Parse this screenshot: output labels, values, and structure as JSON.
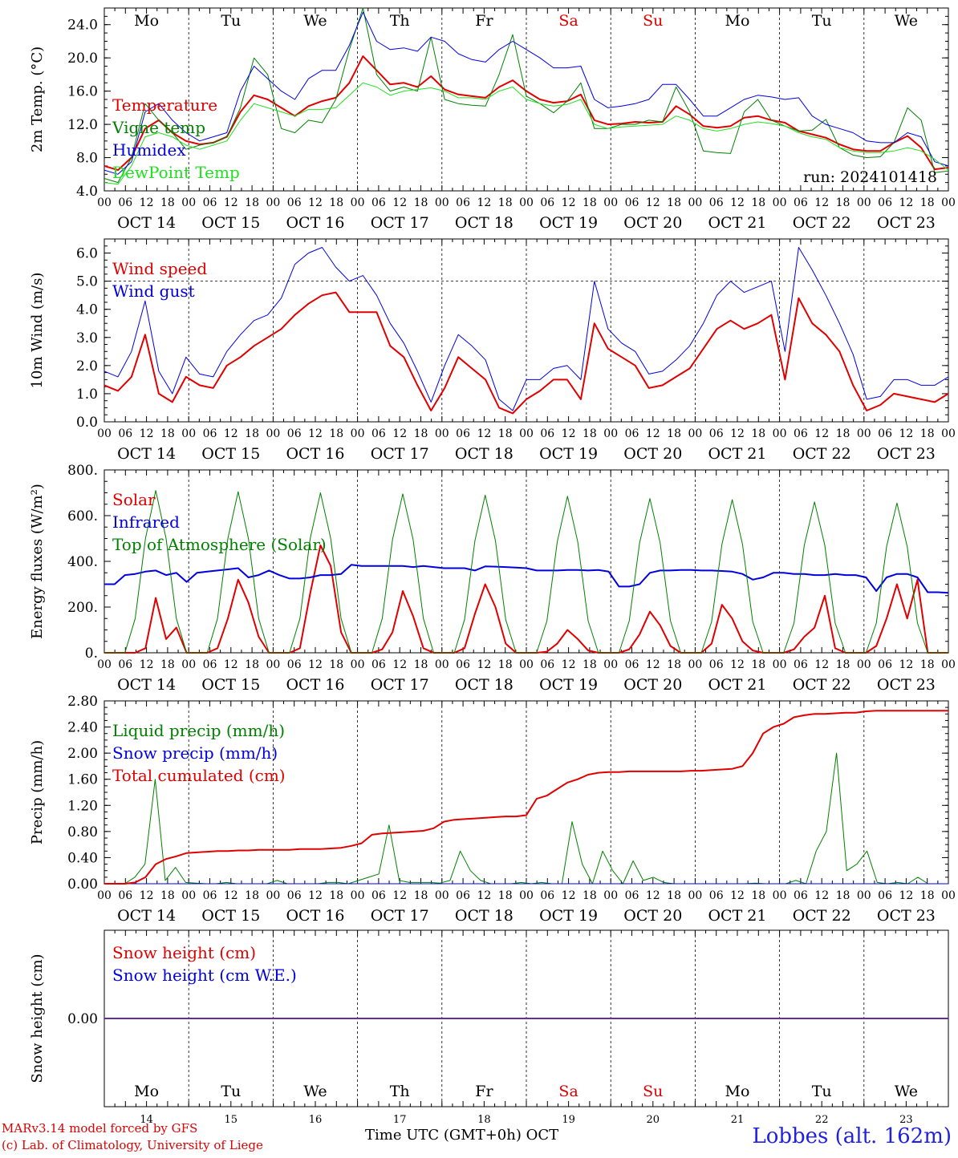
{
  "days": {
    "weekday_labels": [
      "Mo",
      "Tu",
      "We",
      "Th",
      "Fr",
      "Sa",
      "Su",
      "Mo",
      "Tu",
      "We"
    ],
    "date_labels": [
      "OCT 14",
      "OCT 15",
      "OCT 16",
      "OCT 17",
      "OCT 18",
      "OCT 19",
      "OCT 20",
      "OCT 21",
      "OCT 22",
      "OCT 23"
    ],
    "bottom_day_numbers": [
      "14",
      "15",
      "16",
      "17",
      "18",
      "19",
      "20",
      "21",
      "22",
      "23"
    ],
    "hour_labels": [
      "00",
      "06",
      "12",
      "18"
    ],
    "final_hour_label": "00",
    "weekend_color": "#e00000"
  },
  "chart_data": [
    {
      "type": "line",
      "ylabel": "2m Temp. (°C)",
      "ylim": [
        4.0,
        26.0
      ],
      "yticks": [
        "4.0",
        "8.0",
        "12.0",
        "16.0",
        "20.0",
        "24.0"
      ],
      "annotation": "run: 2024101418",
      "x_unit": "days since Oct 14 00 UTC (step 0.25)",
      "series": [
        {
          "name": "Temperature",
          "color": "#e00000",
          "width": 2,
          "values": [
            7.0,
            6.5,
            8.0,
            11.5,
            12.5,
            11.0,
            10.0,
            9.6,
            9.8,
            10.5,
            13.5,
            15.5,
            15.0,
            14.0,
            13.0,
            14.2,
            14.8,
            15.2,
            17.0,
            20.2,
            18.5,
            16.8,
            17.0,
            16.5,
            17.8,
            16.2,
            15.6,
            15.4,
            15.2,
            16.5,
            17.3,
            16.0,
            15.0,
            14.6,
            14.8,
            15.6,
            12.5,
            12.0,
            12.1,
            12.3,
            12.2,
            12.3,
            14.2,
            13.2,
            11.8,
            11.6,
            11.8,
            12.8,
            13.0,
            12.5,
            12.2,
            11.2,
            10.8,
            10.4,
            9.6,
            9.0,
            8.8,
            8.8,
            9.8,
            10.6,
            9.2,
            6.6,
            6.8
          ]
        },
        {
          "name": "Vigne temp",
          "color": "#008000",
          "width": 1,
          "values": [
            5.5,
            5.0,
            8.0,
            14.5,
            12.5,
            11.0,
            9.0,
            9.5,
            9.8,
            10.5,
            14.0,
            20.0,
            18.0,
            11.5,
            11.0,
            12.5,
            12.2,
            15.0,
            21.0,
            26.0,
            18.0,
            16.0,
            16.5,
            16.0,
            22.5,
            15.0,
            14.5,
            14.3,
            14.2,
            18.0,
            22.8,
            15.4,
            14.5,
            13.4,
            14.8,
            17.0,
            11.5,
            11.5,
            12.0,
            12.0,
            12.5,
            12.3,
            16.5,
            13.5,
            8.8,
            8.6,
            8.5,
            13.5,
            15.0,
            12.5,
            11.8,
            11.2,
            11.3,
            12.6,
            9.2,
            8.3,
            8.0,
            8.1,
            9.8,
            14.0,
            12.5,
            6.2,
            6.4
          ]
        },
        {
          "name": "Humidex",
          "color": "#0000e0",
          "width": 1,
          "values": [
            6.5,
            6.0,
            7.5,
            13.5,
            14.5,
            12.5,
            11.0,
            10.0,
            10.5,
            11.0,
            16.0,
            19.0,
            17.5,
            16.0,
            15.0,
            17.5,
            18.5,
            18.5,
            21.5,
            25.5,
            22.0,
            21.0,
            21.2,
            20.8,
            22.5,
            22.0,
            20.5,
            19.8,
            19.5,
            21.0,
            22.0,
            21.0,
            20.0,
            18.8,
            18.8,
            19.0,
            15.0,
            14.0,
            14.2,
            14.5,
            15.0,
            16.8,
            16.8,
            15.0,
            13.0,
            13.0,
            14.0,
            15.0,
            15.5,
            15.3,
            15.0,
            15.2,
            13.0,
            12.0,
            11.5,
            11.0,
            10.0,
            9.8,
            9.8,
            11.0,
            10.5,
            7.5,
            7.0
          ]
        },
        {
          "name": "DewPoint Temp",
          "color": "#20e020",
          "width": 1,
          "values": [
            5.0,
            4.8,
            7.0,
            10.5,
            11.0,
            10.5,
            9.5,
            9.0,
            9.5,
            10.0,
            12.5,
            14.5,
            14.0,
            13.5,
            13.0,
            13.8,
            13.8,
            14.0,
            15.5,
            17.0,
            16.5,
            15.5,
            16.0,
            16.2,
            16.4,
            16.0,
            15.2,
            15.2,
            15.0,
            16.0,
            16.5,
            15.0,
            14.5,
            14.2,
            14.4,
            15.0,
            12.0,
            11.5,
            11.7,
            11.8,
            11.9,
            12.0,
            13.0,
            12.5,
            11.5,
            11.2,
            11.5,
            12.0,
            12.3,
            12.1,
            11.8,
            11.0,
            10.5,
            10.2,
            9.2,
            8.8,
            8.6,
            8.6,
            8.8,
            9.2,
            8.8,
            7.8,
            6.5
          ]
        }
      ]
    },
    {
      "type": "line",
      "ylabel": "10m Wind (m/s)",
      "ylim": [
        0.0,
        6.5
      ],
      "yticks": [
        "0.0",
        "1.0",
        "2.0",
        "3.0",
        "4.0",
        "5.0",
        "6.0"
      ],
      "hline": 5.0,
      "x_unit": "days since Oct 14 00 UTC (step 0.25)",
      "series": [
        {
          "name": "Wind speed",
          "color": "#e00000",
          "width": 2,
          "values": [
            1.3,
            1.1,
            1.6,
            3.1,
            1.0,
            0.7,
            1.6,
            1.3,
            1.2,
            2.0,
            2.3,
            2.7,
            3.0,
            3.3,
            3.8,
            4.2,
            4.5,
            4.6,
            3.9,
            3.9,
            3.9,
            2.7,
            2.3,
            1.3,
            0.4,
            1.2,
            2.3,
            1.9,
            1.5,
            0.5,
            0.3,
            0.8,
            1.1,
            1.5,
            1.5,
            0.8,
            3.5,
            2.6,
            2.3,
            2.0,
            1.2,
            1.3,
            1.6,
            1.9,
            2.6,
            3.3,
            3.6,
            3.3,
            3.5,
            3.8,
            1.5,
            4.4,
            3.5,
            3.1,
            2.5,
            1.3,
            0.4,
            0.6,
            1.0,
            0.9,
            0.8,
            0.7,
            1.0
          ]
        },
        {
          "name": "Wind gust",
          "color": "#0000e0",
          "width": 1,
          "values": [
            1.8,
            1.6,
            2.5,
            4.3,
            1.8,
            1.0,
            2.3,
            1.7,
            1.6,
            2.5,
            3.1,
            3.6,
            3.8,
            4.4,
            5.6,
            6.0,
            6.2,
            5.5,
            5.0,
            5.2,
            4.5,
            3.5,
            2.8,
            1.8,
            0.7,
            2.0,
            3.1,
            2.7,
            2.2,
            0.8,
            0.4,
            1.5,
            1.5,
            1.9,
            2.0,
            1.5,
            5.0,
            3.3,
            2.8,
            2.5,
            1.7,
            1.8,
            2.2,
            2.7,
            3.5,
            4.5,
            5.0,
            4.6,
            4.8,
            5.0,
            2.5,
            6.2,
            5.4,
            4.5,
            3.5,
            2.4,
            0.8,
            0.9,
            1.5,
            1.5,
            1.3,
            1.3,
            1.6
          ]
        }
      ]
    },
    {
      "type": "line",
      "ylabel": "Energy fluxes (W/m²)",
      "ylim": [
        0,
        800
      ],
      "yticks": [
        "0.",
        "200.",
        "400.",
        "600.",
        "800."
      ],
      "x_unit": "days since Oct 14 00 UTC (step 0.125)",
      "series": [
        {
          "name": "Solar",
          "color": "#e00000",
          "width": 2,
          "values": [
            0,
            0,
            0,
            0,
            20,
            240,
            60,
            110,
            0,
            0,
            0,
            20,
            150,
            320,
            220,
            70,
            0,
            0,
            0,
            20,
            260,
            470,
            380,
            90,
            0,
            0,
            0,
            15,
            90,
            270,
            160,
            20,
            0,
            0,
            0,
            20,
            170,
            300,
            200,
            40,
            0,
            0,
            0,
            5,
            40,
            100,
            60,
            10,
            0,
            0,
            0,
            15,
            80,
            180,
            120,
            30,
            0,
            0,
            0,
            40,
            210,
            150,
            50,
            10,
            0,
            0,
            0,
            15,
            70,
            110,
            250,
            20,
            0,
            0,
            0,
            30,
            150,
            300,
            150,
            320,
            0,
            0,
            0
          ]
        },
        {
          "name": "Infrared",
          "color": "#0000e0",
          "width": 2,
          "values": [
            300,
            300,
            340,
            345,
            355,
            360,
            340,
            350,
            310,
            350,
            355,
            360,
            365,
            370,
            330,
            340,
            360,
            340,
            325,
            325,
            330,
            340,
            340,
            345,
            385,
            380,
            380,
            380,
            380,
            380,
            375,
            380,
            375,
            370,
            370,
            370,
            360,
            378,
            377,
            375,
            373,
            370,
            360,
            360,
            360,
            362,
            362,
            360,
            362,
            355,
            290,
            290,
            300,
            350,
            360,
            360,
            362,
            362,
            360,
            360,
            358,
            355,
            345,
            320,
            330,
            350,
            350,
            345,
            345,
            340,
            340,
            345,
            340,
            340,
            330,
            270,
            330,
            345,
            345,
            330,
            265,
            265,
            262
          ]
        },
        {
          "name": "Top of Atmosphere (Solar)",
          "color": "#008000",
          "width": 1,
          "values": [
            0,
            0,
            0,
            150,
            500,
            710,
            500,
            150,
            0,
            0,
            0,
            150,
            500,
            705,
            500,
            150,
            0,
            0,
            0,
            150,
            500,
            700,
            500,
            150,
            0,
            0,
            0,
            150,
            495,
            695,
            495,
            150,
            0,
            0,
            0,
            145,
            490,
            690,
            490,
            145,
            0,
            0,
            0,
            140,
            485,
            685,
            485,
            140,
            0,
            0,
            0,
            140,
            480,
            675,
            480,
            140,
            0,
            0,
            0,
            135,
            475,
            670,
            475,
            135,
            0,
            0,
            0,
            130,
            470,
            660,
            470,
            130,
            0,
            0,
            0,
            130,
            465,
            655,
            465,
            130,
            0,
            0,
            0
          ]
        }
      ]
    },
    {
      "type": "line",
      "ylabel": "Precip (mm/h)",
      "ylim": [
        0.0,
        2.8
      ],
      "yticks": [
        "0.00",
        "0.40",
        "0.80",
        "1.20",
        "1.60",
        "2.00",
        "2.40",
        "2.80"
      ],
      "x_unit": "days since Oct 14 00 UTC (step 0.125)",
      "series": [
        {
          "name": "Liquid precip (mm/h)",
          "color": "#008000",
          "width": 1,
          "values": [
            0,
            0,
            0,
            0.1,
            0.3,
            1.6,
            0.05,
            0.25,
            0.02,
            0.01,
            0,
            0,
            0.02,
            0,
            0,
            0,
            0,
            0.05,
            0,
            0,
            0,
            0,
            0.02,
            0.02,
            0,
            0.05,
            0.1,
            0.15,
            0.9,
            0.05,
            0.02,
            0.02,
            0.02,
            0.01,
            0.05,
            0.5,
            0.2,
            0.05,
            0,
            0,
            0,
            0.02,
            0,
            0.02,
            0,
            0,
            0.95,
            0.3,
            0,
            0.5,
            0.2,
            0,
            0.35,
            0.05,
            0.1,
            0.02,
            0,
            0,
            0,
            0,
            0,
            0,
            0,
            0,
            0.01,
            0,
            0,
            0,
            0.05,
            0,
            0.5,
            0.8,
            2.0,
            0.2,
            0.3,
            0.5,
            0.02,
            0,
            0.02,
            0,
            0.1,
            0,
            0,
            0
          ]
        },
        {
          "name": "Snow precip (mm/h)",
          "color": "#0000e0",
          "width": 1,
          "values": [
            0,
            0,
            0,
            0,
            0,
            0,
            0,
            0,
            0,
            0,
            0,
            0,
            0,
            0,
            0,
            0,
            0,
            0,
            0,
            0,
            0,
            0,
            0,
            0,
            0,
            0,
            0,
            0,
            0,
            0,
            0,
            0,
            0,
            0,
            0,
            0,
            0,
            0,
            0,
            0,
            0,
            0,
            0,
            0,
            0,
            0,
            0,
            0,
            0,
            0,
            0,
            0,
            0,
            0,
            0,
            0,
            0,
            0,
            0,
            0,
            0,
            0,
            0,
            0,
            0,
            0,
            0,
            0,
            0,
            0,
            0,
            0,
            0,
            0,
            0,
            0,
            0,
            0,
            0,
            0,
            0,
            0,
            0
          ]
        },
        {
          "name": "Total cumulated (cm)",
          "color": "#e00000",
          "width": 2,
          "values": [
            0,
            0,
            0,
            0.02,
            0.1,
            0.3,
            0.38,
            0.42,
            0.47,
            0.48,
            0.49,
            0.5,
            0.5,
            0.51,
            0.51,
            0.52,
            0.52,
            0.52,
            0.52,
            0.53,
            0.53,
            0.53,
            0.54,
            0.55,
            0.58,
            0.62,
            0.75,
            0.77,
            0.78,
            0.79,
            0.8,
            0.81,
            0.85,
            0.95,
            0.98,
            0.99,
            1.0,
            1.01,
            1.02,
            1.03,
            1.03,
            1.05,
            1.3,
            1.35,
            1.45,
            1.55,
            1.6,
            1.67,
            1.7,
            1.71,
            1.71,
            1.72,
            1.72,
            1.72,
            1.72,
            1.72,
            1.72,
            1.73,
            1.73,
            1.74,
            1.75,
            1.76,
            1.8,
            2.0,
            2.3,
            2.4,
            2.45,
            2.55,
            2.58,
            2.6,
            2.6,
            2.61,
            2.62,
            2.62,
            2.64,
            2.65,
            2.65,
            2.65,
            2.65,
            2.65,
            2.65,
            2.65,
            2.65
          ]
        }
      ]
    },
    {
      "type": "line",
      "ylabel": "Snow height (cm)",
      "ylim": [
        -1.0,
        1.0
      ],
      "yticks": [
        "0.00"
      ],
      "x_unit": "days since Oct 14 00 UTC (step 1)",
      "series": [
        {
          "name": "Snow height (cm)",
          "color": "#e00000",
          "width": 1,
          "values": [
            0,
            0,
            0,
            0,
            0,
            0,
            0,
            0,
            0,
            0,
            0
          ]
        },
        {
          "name": "Snow height (cm W.E.)",
          "color": "#6a2aa0",
          "width": 2,
          "values": [
            0,
            0,
            0,
            0,
            0,
            0,
            0,
            0,
            0,
            0,
            0
          ]
        }
      ]
    }
  ],
  "footer": {
    "credit_line1": "MARv3.14 model forced by GFS",
    "credit_line2": "(c) Lab. of Climatology, University of Liege",
    "axis_title": "Time UTC (GMT+0h)",
    "month": "OCT",
    "station": "Lobbes (alt. 162m)"
  }
}
